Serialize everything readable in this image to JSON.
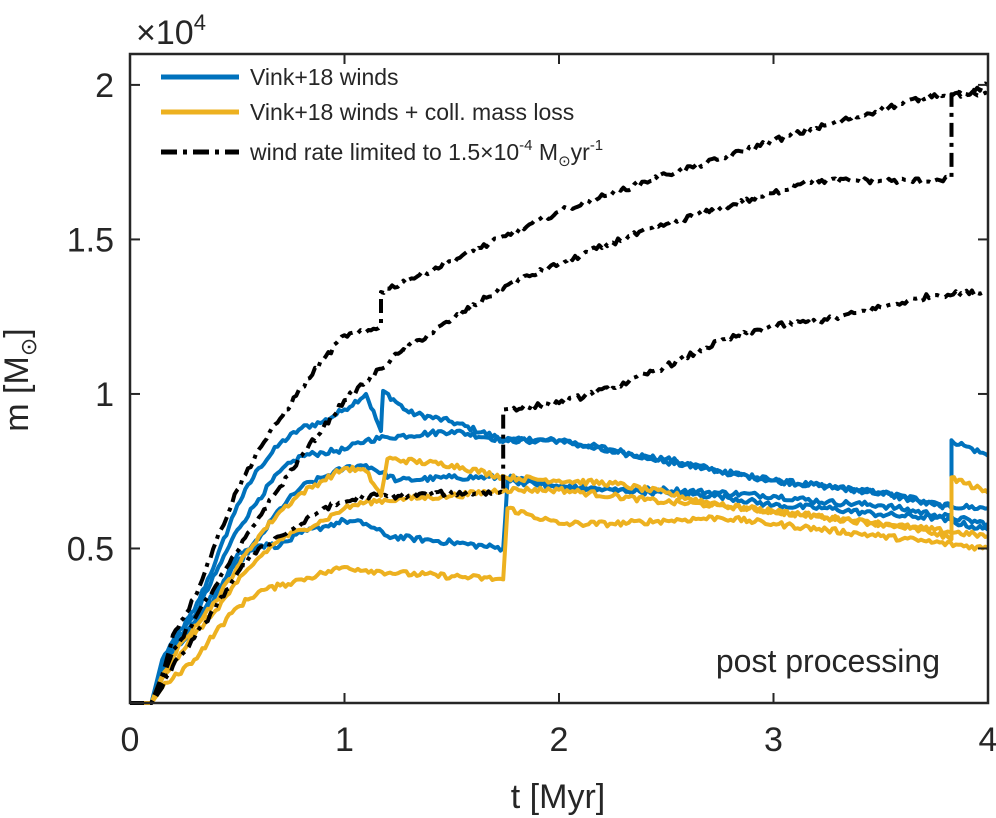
{
  "chart_data": {
    "type": "line",
    "title": "",
    "xlabel": "t [Myr]",
    "ylabel_main": "m [M",
    "ylabel_sub": "⊙",
    "ylabel_close": "]",
    "xlim": [
      0,
      4
    ],
    "ylim": [
      0,
      21000
    ],
    "xticks": [
      0,
      1,
      2,
      3,
      4
    ],
    "xtick_labels": [
      "0",
      "1",
      "2",
      "3",
      "4"
    ],
    "yticks": [
      5000,
      10000,
      15000,
      20000
    ],
    "ytick_labels": [
      "0.5",
      "1",
      "1.5",
      "2"
    ],
    "exponent_prefix": "×10",
    "exponent_power": "4",
    "annotation": "post processing",
    "grid": false,
    "legend_position": "top-left",
    "colors": {
      "blue": "#0072BD",
      "yellow": "#EDB120",
      "black": "#000000",
      "axis": "#262626"
    },
    "legend": [
      {
        "name": "Vink+18 winds",
        "color": "#0072BD",
        "style": "solid"
      },
      {
        "name": "Vink+18 winds + coll. mass loss",
        "color": "#EDB120",
        "style": "solid"
      },
      {
        "name_main": "wind rate limited to 1.5",
        "name_times": "×",
        "name_ten": "10",
        "name_exp": "-4",
        "name_m": " M",
        "name_sun": "⊙",
        "name_yr": "yr",
        "name_yrexp": "-1",
        "color": "#000000",
        "style": "dashdot"
      }
    ],
    "series": [
      {
        "name": "black limited A",
        "color": "#000000",
        "style": "dashdot",
        "x": [
          0.0,
          0.1,
          0.15,
          0.2,
          0.3,
          0.4,
          0.5,
          0.6,
          0.7,
          0.8,
          0.9,
          1.0,
          1.1,
          1.17,
          1.17,
          1.3,
          1.5,
          1.75,
          2.0,
          2.25,
          2.5,
          2.75,
          3.0,
          3.25,
          3.5,
          3.75,
          3.82,
          3.82,
          3.9,
          4.0
        ],
        "y": [
          0,
          0,
          900,
          2200,
          3400,
          5200,
          6900,
          8200,
          9200,
          10200,
          11100,
          11900,
          12000,
          12200,
          13300,
          13700,
          14300,
          15100,
          15900,
          16500,
          17100,
          17600,
          18200,
          18700,
          19200,
          19700,
          19700,
          19700,
          19700,
          20000
        ]
      },
      {
        "name": "black limited B",
        "color": "#000000",
        "style": "dashdot",
        "x": [
          0.0,
          0.1,
          0.15,
          0.2,
          0.3,
          0.4,
          0.5,
          0.6,
          0.7,
          0.8,
          0.9,
          1.0,
          1.1,
          1.25,
          1.5,
          1.75,
          2.0,
          2.25,
          2.5,
          2.75,
          3.0,
          3.15,
          3.5,
          3.75,
          3.83,
          3.83,
          3.88,
          4.0
        ],
        "y": [
          0,
          0,
          700,
          1700,
          2700,
          3800,
          4900,
          6000,
          7000,
          8000,
          8900,
          9800,
          10400,
          11300,
          12400,
          13500,
          14200,
          14900,
          15500,
          16000,
          16500,
          16900,
          16900,
          16900,
          17000,
          19700,
          19700,
          19700
        ]
      },
      {
        "name": "black limited C",
        "color": "#000000",
        "style": "dashdot",
        "x": [
          0.0,
          0.1,
          0.15,
          0.2,
          0.3,
          0.4,
          0.5,
          0.6,
          0.7,
          0.8,
          0.9,
          1.0,
          1.1,
          1.25,
          1.5,
          1.72,
          1.74,
          1.74,
          2.0,
          2.25,
          2.5,
          2.75,
          3.0,
          3.25,
          3.5,
          3.75,
          4.0
        ],
        "y": [
          0,
          0,
          500,
          1200,
          2100,
          3100,
          4200,
          5000,
          5400,
          5800,
          6300,
          6500,
          6700,
          6700,
          6800,
          6800,
          6800,
          9500,
          9700,
          10200,
          10900,
          11700,
          12200,
          12400,
          12800,
          13200,
          13300
        ]
      },
      {
        "name": "blue A",
        "color": "#0072BD",
        "style": "solid",
        "x": [
          0.0,
          0.1,
          0.15,
          0.2,
          0.3,
          0.4,
          0.5,
          0.6,
          0.7,
          0.8,
          0.9,
          1.0,
          1.1,
          1.17,
          1.17,
          1.18,
          1.3,
          1.5,
          1.75,
          2.0,
          2.25,
          2.5,
          2.75,
          3.0,
          3.25,
          3.5,
          3.75,
          3.83,
          3.83,
          3.9,
          4.0
        ],
        "y": [
          0,
          0,
          1400,
          2000,
          3000,
          4600,
          6400,
          7600,
          8400,
          8900,
          9100,
          9500,
          10000,
          8800,
          8800,
          10100,
          9400,
          9100,
          8500,
          8500,
          8200,
          7800,
          7500,
          7200,
          7000,
          6800,
          6500,
          6300,
          8500,
          8300,
          8000
        ]
      },
      {
        "name": "blue B",
        "color": "#0072BD",
        "style": "solid",
        "x": [
          0.0,
          0.1,
          0.15,
          0.2,
          0.3,
          0.4,
          0.5,
          0.6,
          0.7,
          0.8,
          0.9,
          1.0,
          1.1,
          1.2,
          1.5,
          1.75,
          2.0,
          2.25,
          2.5,
          2.75,
          3.0,
          3.25,
          3.5,
          3.75,
          4.0
        ],
        "y": [
          0,
          0,
          1200,
          1900,
          2800,
          4200,
          5600,
          6600,
          7500,
          8000,
          8100,
          8200,
          8500,
          8600,
          8800,
          8500,
          8500,
          8100,
          7900,
          7500,
          7200,
          7000,
          6800,
          6400,
          6300
        ]
      },
      {
        "name": "blue C",
        "color": "#0072BD",
        "style": "solid",
        "x": [
          0.0,
          0.1,
          0.15,
          0.2,
          0.3,
          0.4,
          0.5,
          0.6,
          0.7,
          0.8,
          0.9,
          1.0,
          1.1,
          1.25,
          1.5,
          1.75,
          2.0,
          2.25,
          2.5,
          2.75,
          3.0,
          3.25,
          3.5,
          3.75,
          4.0
        ],
        "y": [
          0,
          0,
          1000,
          1700,
          2600,
          3600,
          4500,
          5300,
          6300,
          7000,
          7300,
          7600,
          7700,
          7200,
          7300,
          7300,
          7000,
          6900,
          6900,
          6800,
          6700,
          6500,
          6400,
          6100,
          5800
        ]
      },
      {
        "name": "blue D",
        "color": "#0072BD",
        "style": "solid",
        "x": [
          0.0,
          0.1,
          0.15,
          0.2,
          0.3,
          0.4,
          0.5,
          0.6,
          0.7,
          0.8,
          0.9,
          1.0,
          1.1,
          1.2,
          1.5,
          1.74,
          1.74,
          1.76,
          2.0,
          2.25,
          2.5,
          2.75,
          3.0,
          3.25,
          3.5,
          3.75,
          4.0
        ],
        "y": [
          0,
          0,
          800,
          1600,
          2500,
          3500,
          4800,
          5100,
          5100,
          5500,
          5700,
          5900,
          5800,
          5400,
          5200,
          5000,
          5000,
          7200,
          7000,
          6900,
          6800,
          6700,
          6400,
          6300,
          6100,
          6000,
          5600
        ]
      },
      {
        "name": "yellow A",
        "color": "#EDB120",
        "style": "solid",
        "x": [
          0.0,
          0.1,
          0.15,
          0.2,
          0.3,
          0.4,
          0.5,
          0.6,
          0.7,
          0.8,
          0.9,
          1.0,
          1.1,
          1.17,
          1.17,
          1.2,
          1.5,
          1.75,
          2.0,
          2.25,
          2.5,
          2.75,
          3.0,
          3.25,
          3.5,
          3.75,
          3.83,
          3.83,
          3.9,
          4.0
        ],
        "y": [
          0,
          0,
          900,
          1500,
          2500,
          3300,
          4400,
          5400,
          6200,
          6800,
          7200,
          7600,
          7500,
          6700,
          6700,
          7900,
          7700,
          7300,
          7200,
          7100,
          6800,
          6400,
          6200,
          6000,
          5800,
          5500,
          5300,
          7300,
          7100,
          6800
        ]
      },
      {
        "name": "yellow B",
        "color": "#EDB120",
        "style": "solid",
        "x": [
          0.0,
          0.1,
          0.15,
          0.2,
          0.3,
          0.4,
          0.5,
          0.6,
          0.7,
          0.8,
          0.9,
          1.0,
          1.1,
          1.25,
          1.5,
          1.75,
          2.0,
          2.25,
          2.5,
          2.75,
          3.0,
          3.25,
          3.5,
          3.75,
          4.0
        ],
        "y": [
          0,
          0,
          800,
          1300,
          2200,
          3000,
          3900,
          4700,
          5300,
          5600,
          5900,
          6300,
          6500,
          6600,
          6700,
          6900,
          6900,
          6700,
          6500,
          6400,
          6200,
          6000,
          5800,
          5600,
          5400
        ]
      },
      {
        "name": "yellow C",
        "color": "#EDB120",
        "style": "solid",
        "x": [
          0.0,
          0.1,
          0.15,
          0.2,
          0.3,
          0.4,
          0.5,
          0.6,
          0.7,
          0.8,
          0.9,
          1.0,
          1.1,
          1.25,
          1.5,
          1.74,
          1.74,
          1.76,
          2.0,
          2.25,
          2.5,
          2.75,
          3.0,
          3.25,
          3.5,
          3.75,
          4.0
        ],
        "y": [
          0,
          0,
          500,
          800,
          1400,
          2300,
          3100,
          3600,
          3800,
          4000,
          4200,
          4400,
          4300,
          4200,
          4100,
          4000,
          4000,
          6300,
          5800,
          5800,
          5900,
          6000,
          5800,
          5600,
          5400,
          5200,
          5000
        ]
      }
    ]
  }
}
